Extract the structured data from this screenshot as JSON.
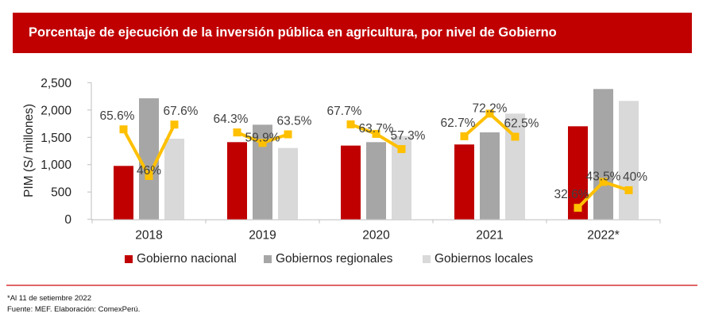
{
  "header": {
    "title": "Porcentaje de ejecución de la inversión pública en agricultura, por nivel de Gobierno"
  },
  "chart_data": {
    "type": "bar",
    "title": "Porcentaje de ejecución de la inversión pública en agricultura, por nivel de Gobierno",
    "xlabel": "",
    "ylabel": "PIM (S/ millones)",
    "ylim": [
      0,
      2500
    ],
    "yticks": [
      0,
      500,
      1000,
      1500,
      2000,
      2500
    ],
    "ytick_labels": [
      "0",
      "500",
      "1,000",
      "1,500",
      "2,000",
      "2,500"
    ],
    "grid": false,
    "legend_position": "bottom",
    "categories": [
      "2018",
      "2019",
      "2020",
      "2021",
      "2022*"
    ],
    "series": [
      {
        "name": "Gobierno nacional",
        "color": "#c00000",
        "values": [
          977,
          1412,
          1349,
          1369,
          1702
        ],
        "execution_pct": [
          65.6,
          64.3,
          67.7,
          62.7,
          32.6
        ],
        "execution_labels": [
          "65.6%",
          "64.3%",
          "67.7%",
          "62.7%",
          "32.6%"
        ]
      },
      {
        "name": "Gobiernos regionales",
        "color": "#a6a6a6",
        "values": [
          2214,
          1731,
          1412,
          1591,
          2384
        ],
        "execution_pct": [
          46.0,
          59.9,
          63.7,
          72.2,
          43.5
        ],
        "execution_labels": [
          "46%",
          "59.9%",
          "63.7%",
          "72.2%",
          "43.5%"
        ]
      },
      {
        "name": "Gobiernos locales",
        "color": "#d9d9d9",
        "values": [
          1475,
          1305,
          1523,
          1934,
          2166
        ],
        "execution_pct": [
          67.6,
          63.5,
          57.3,
          62.5,
          40.0
        ],
        "execution_labels": [
          "67.6%",
          "63.5%",
          "57.3%",
          "62.5%",
          "40%"
        ]
      }
    ],
    "line": {
      "name": "Porcentaje de ejecución",
      "color": "#ffc000",
      "note": "drawn per year across the three government levels"
    }
  },
  "legend": {
    "items": [
      {
        "label": "Gobierno nacional",
        "color": "#c00000"
      },
      {
        "label": "Gobiernos regionales",
        "color": "#a6a6a6"
      },
      {
        "label": "Gobiernos locales",
        "color": "#d9d9d9"
      }
    ]
  },
  "footer": {
    "note": "*Al 11 de setiembre 2022",
    "source": "Fuente: MEF. Elaboración: ComexPerú."
  }
}
